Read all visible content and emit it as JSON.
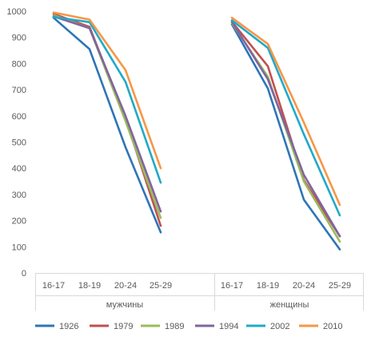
{
  "chart_data": {
    "type": "line",
    "y_axis": {
      "min": 0,
      "max": 1000,
      "step": 100,
      "ticks": [
        "0",
        "100",
        "200",
        "300",
        "400",
        "500",
        "600",
        "700",
        "800",
        "900",
        "1000"
      ]
    },
    "x_axis": {
      "groups": [
        {
          "label": "мужчины",
          "categories": [
            "16-17",
            "18-19",
            "20-24",
            "25-29"
          ]
        },
        {
          "label": "женщины",
          "categories": [
            "16-17",
            "18-19",
            "20-24",
            "25-29"
          ]
        }
      ]
    },
    "grid": false,
    "legend_position": "bottom",
    "series": [
      {
        "name": "1926",
        "color": "#2e75b6",
        "values": [
          [
            975,
            855,
            480,
            155
          ],
          [
            950,
            705,
            280,
            90
          ]
        ]
      },
      {
        "name": "1979",
        "color": "#c0504d",
        "values": [
          [
            990,
            940,
            590,
            180
          ],
          [
            960,
            790,
            355,
            140
          ]
        ]
      },
      {
        "name": "1989",
        "color": "#9bbb59",
        "values": [
          [
            985,
            935,
            580,
            210
          ],
          [
            955,
            750,
            350,
            120
          ]
        ]
      },
      {
        "name": "1994",
        "color": "#8064a2",
        "values": [
          [
            980,
            935,
            600,
            235
          ],
          [
            960,
            740,
            375,
            140
          ]
        ]
      },
      {
        "name": "2002",
        "color": "#21a9c9",
        "values": [
          [
            978,
            958,
            730,
            345
          ],
          [
            965,
            860,
            530,
            220
          ]
        ]
      },
      {
        "name": "2010",
        "color": "#f79646",
        "values": [
          [
            995,
            968,
            775,
            400
          ],
          [
            975,
            875,
            575,
            260
          ]
        ]
      }
    ]
  }
}
